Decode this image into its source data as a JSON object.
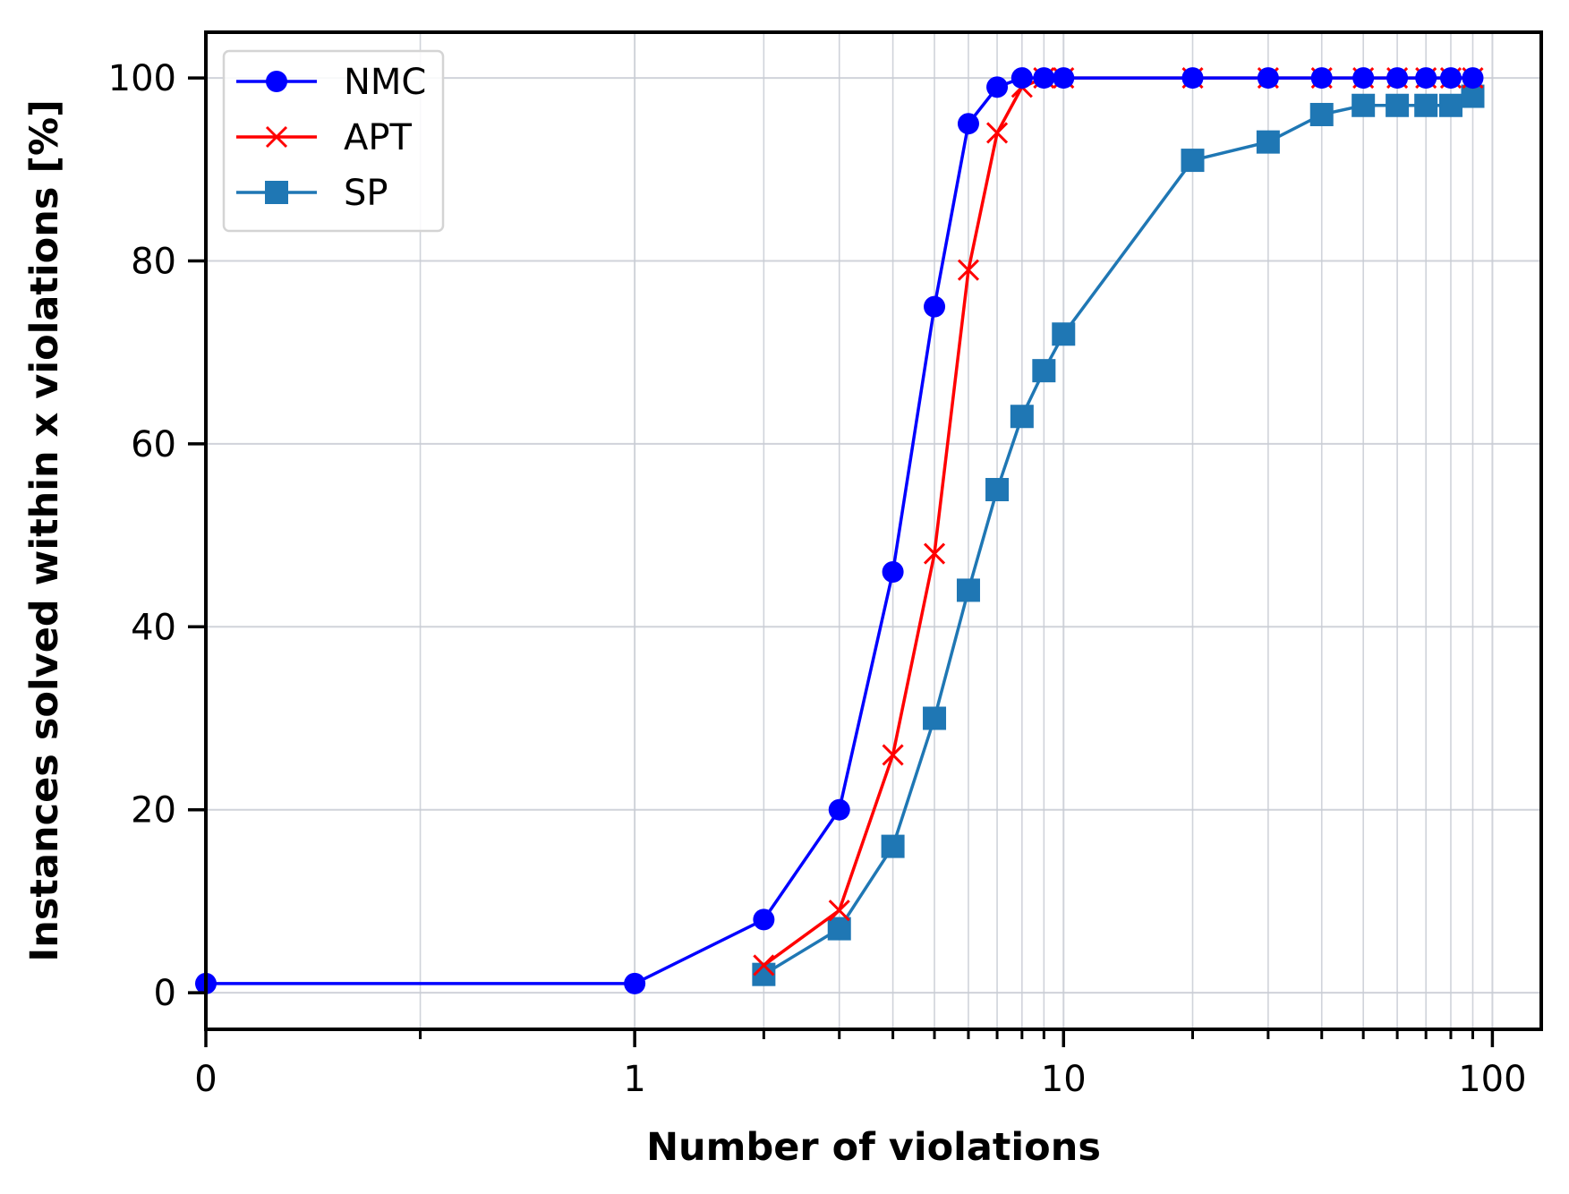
{
  "chart_data": {
    "type": "line",
    "xlabel": "Number of violations",
    "ylabel": "Instances solved within x violations [%]",
    "x_scale": "symlog",
    "x_ticks": [
      {
        "value": 0,
        "label": "0"
      },
      {
        "value": 1,
        "label": "1"
      },
      {
        "value": 10,
        "label": "10"
      },
      {
        "value": 100,
        "label": "100"
      }
    ],
    "y_ticks": [
      {
        "value": 0,
        "label": "0"
      },
      {
        "value": 20,
        "label": "20"
      },
      {
        "value": 40,
        "label": "40"
      },
      {
        "value": 60,
        "label": "60"
      },
      {
        "value": 80,
        "label": "80"
      },
      {
        "value": 100,
        "label": "100"
      }
    ],
    "xlim": [
      0,
      130
    ],
    "ylim": [
      -4,
      105
    ],
    "grid": true,
    "legend_position": "top-left",
    "series": [
      {
        "name": "NMC",
        "color": "#0000ff",
        "marker": "circle",
        "x": [
          0,
          1,
          2,
          3,
          4,
          5,
          6,
          7,
          8,
          9,
          10,
          20,
          30,
          40,
          50,
          60,
          70,
          80,
          90
        ],
        "y": [
          1,
          1,
          8,
          20,
          46,
          75,
          95,
          99,
          100,
          100,
          100,
          100,
          100,
          100,
          100,
          100,
          100,
          100,
          100
        ]
      },
      {
        "name": "APT",
        "color": "#ff0000",
        "marker": "x",
        "x": [
          2,
          3,
          4,
          5,
          6,
          7,
          8,
          9,
          10,
          20,
          30,
          40,
          50,
          60,
          70,
          80,
          90
        ],
        "y": [
          3,
          9,
          26,
          48,
          79,
          94,
          99,
          100,
          100,
          100,
          100,
          100,
          100,
          100,
          100,
          100,
          100
        ]
      },
      {
        "name": "SP",
        "color": "#1f77b4",
        "marker": "square",
        "x": [
          2,
          3,
          4,
          5,
          6,
          7,
          8,
          9,
          10,
          20,
          30,
          40,
          50,
          60,
          70,
          80,
          90
        ],
        "y": [
          2,
          7,
          16,
          30,
          44,
          55,
          63,
          68,
          72,
          91,
          93,
          96,
          97,
          97,
          97,
          97,
          98
        ]
      }
    ]
  }
}
